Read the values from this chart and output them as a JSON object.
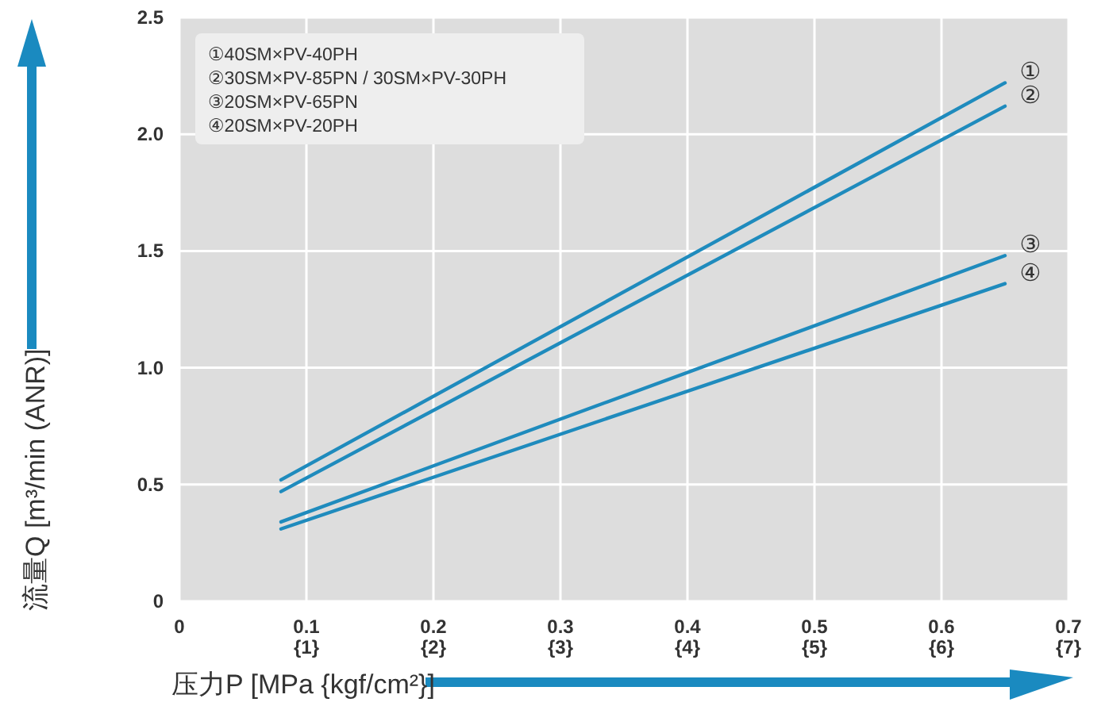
{
  "chart_data": {
    "type": "line",
    "xlabel": "压力P [MPa {kgf/cm²}]",
    "ylabel": "流量Q [m³/min (ANR)]",
    "xlim": [
      0,
      0.7
    ],
    "ylim": [
      0,
      2.5
    ],
    "xticks": [
      0,
      0.1,
      0.2,
      0.3,
      0.4,
      0.5,
      0.6,
      0.7
    ],
    "x2lim": [
      0,
      7
    ],
    "x2ticks": [
      {
        "value": 1,
        "label": "{1}"
      },
      {
        "value": 2,
        "label": "{2}"
      },
      {
        "value": 3,
        "label": "{3}"
      },
      {
        "value": 4,
        "label": "{4}"
      },
      {
        "value": 5,
        "label": "{5}"
      },
      {
        "value": 6,
        "label": "{6}"
      },
      {
        "value": 7,
        "label": "{7}"
      }
    ],
    "yticks": [
      0,
      0.5,
      {
        "value": 1,
        "label": "1.0"
      },
      1.5,
      {
        "value": 2,
        "label": "2.0"
      },
      2.5
    ],
    "grid": true,
    "marker": "none",
    "line_style": "solid",
    "x": [
      0.08,
      0.65
    ],
    "series": [
      {
        "name": "①",
        "color": "#1f8bbd",
        "values": [
          0.52,
          2.22
        ]
      },
      {
        "name": "②",
        "color": "#1f8bbd",
        "values": [
          0.47,
          2.12
        ]
      },
      {
        "name": "③",
        "color": "#1f8bbd",
        "values": [
          0.34,
          1.48
        ]
      },
      {
        "name": "④",
        "color": "#1f8bbd",
        "values": [
          0.31,
          1.36
        ]
      }
    ],
    "annotations": [
      "①40SM×PV-40PH",
      "②30SM×PV-85PN / 30SM×PV-30PH",
      "③20SM×PV-65PN",
      "④20SM×PV-20PH"
    ]
  }
}
